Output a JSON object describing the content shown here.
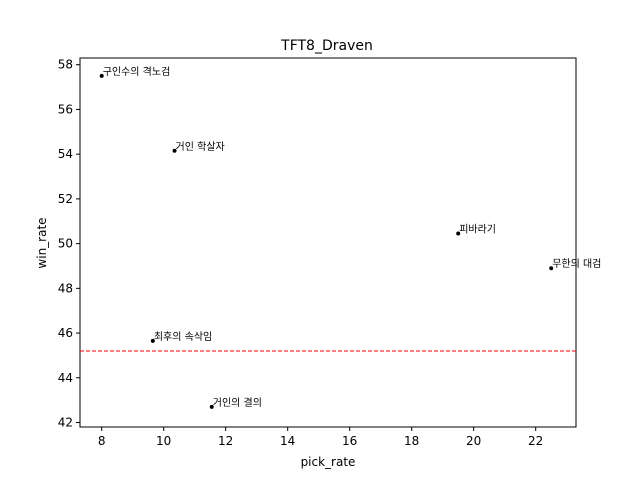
{
  "chart_data": {
    "type": "scatter",
    "title": "TFT8_Draven",
    "xlabel": "pick_rate",
    "ylabel": "win_rate",
    "xlim": [
      7.3,
      23.3
    ],
    "ylim": [
      41.8,
      58.3
    ],
    "xticks": [
      8,
      10,
      12,
      14,
      16,
      18,
      20,
      22
    ],
    "yticks": [
      42,
      44,
      46,
      48,
      50,
      52,
      54,
      56,
      58
    ],
    "points": [
      {
        "label": "구인수의 격노검",
        "x": 8.0,
        "y": 57.5
      },
      {
        "label": "거인 학살자",
        "x": 10.35,
        "y": 54.15
      },
      {
        "label": "피바라기",
        "x": 19.5,
        "y": 50.45
      },
      {
        "label": "무한의 대검",
        "x": 22.5,
        "y": 48.9
      },
      {
        "label": "최후의 속삭임",
        "x": 9.65,
        "y": 45.65
      },
      {
        "label": "거인의 결의",
        "x": 11.55,
        "y": 42.7
      }
    ],
    "hline": {
      "y": 45.2,
      "color": "#ff0000",
      "style": "dashed"
    },
    "marker_color": "#000000",
    "grid": false
  }
}
